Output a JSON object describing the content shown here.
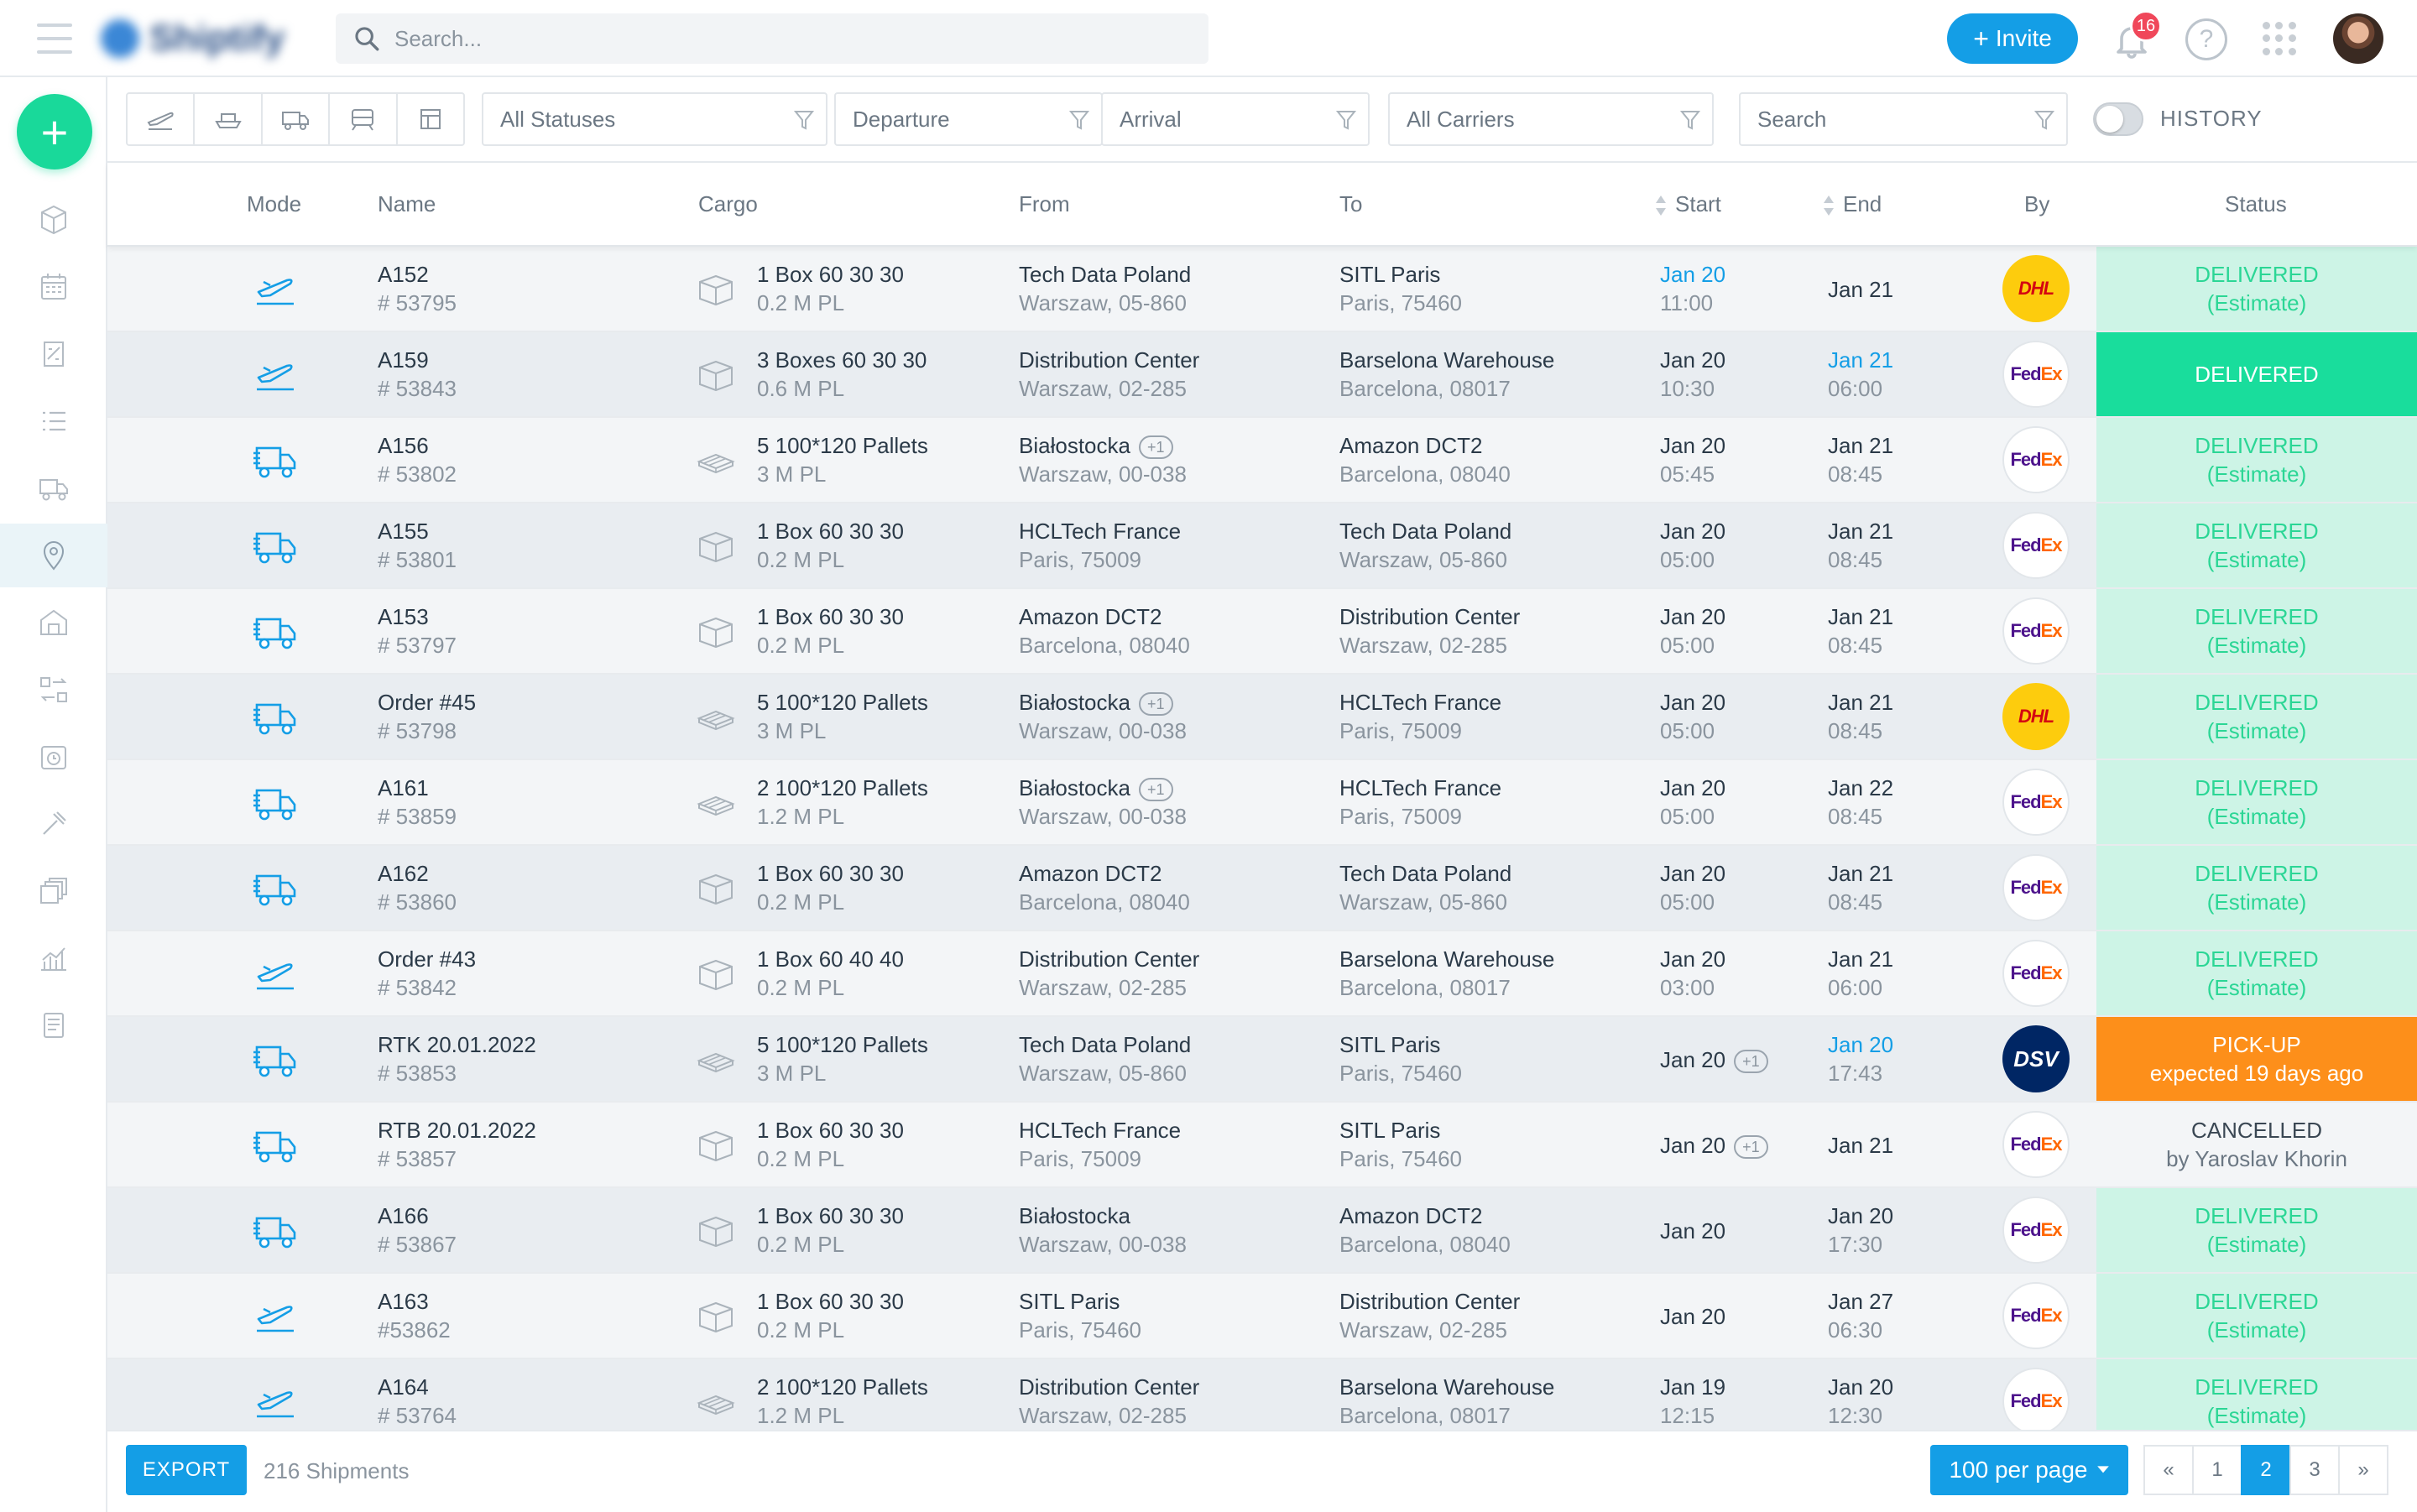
{
  "topbar": {
    "logo_text": "Shiptify",
    "search_placeholder": "Search...",
    "invite_label": "Invite",
    "notifications_count": "16",
    "help_label": "?"
  },
  "filters": {
    "status": "All Statuses",
    "departure": "Departure",
    "arrival": "Arrival",
    "carriers": "All Carriers",
    "search": "Search",
    "history_label": "HISTORY",
    "history_enabled": false
  },
  "table": {
    "columns": {
      "mode": "Mode",
      "name": "Name",
      "cargo": "Cargo",
      "from": "From",
      "to": "To",
      "start": "Start",
      "end": "End",
      "by": "By",
      "status": "Status"
    },
    "rows": [
      {
        "mode": "air",
        "name": "A152",
        "id": "# 53795",
        "cargo_type": "box",
        "cargo": "1 Box 60 30 30",
        "cargo_size": "0.2 M PL",
        "from_name": "Tech Data Poland",
        "from_extra": "",
        "from_city": "Warszaw, 05-860",
        "to_name": "SITL Paris",
        "to_city": "Paris, 75460",
        "start_date": "Jan 20",
        "start_time": "11:00",
        "start_extra": "",
        "start_highlight": true,
        "end_date": "Jan 21",
        "end_time": "",
        "end_highlight": false,
        "carrier": "dhl",
        "carrier_label": "DHL",
        "status_type": "est",
        "status": "DELIVERED",
        "status_sub": "(Estimate)"
      },
      {
        "mode": "air",
        "name": "A159",
        "id": "# 53843",
        "cargo_type": "box",
        "cargo": "3 Boxes 60 30 30",
        "cargo_size": "0.6 M PL",
        "from_name": "Distribution Center",
        "from_extra": "",
        "from_city": "Warszaw, 02-285",
        "to_name": "Barselona Warehouse",
        "to_city": "Barcelona, 08017",
        "start_date": "Jan 20",
        "start_time": "10:30",
        "start_extra": "",
        "start_highlight": false,
        "end_date": "Jan 21",
        "end_time": "06:00",
        "end_highlight": true,
        "carrier": "fedex",
        "carrier_label": "FedEx",
        "status_type": "del",
        "status": "DELIVERED",
        "status_sub": ""
      },
      {
        "mode": "truck",
        "name": "A156",
        "id": "# 53802",
        "cargo_type": "pallet",
        "cargo": "5 100*120 Pallets",
        "cargo_size": "3 M PL",
        "from_name": "Białostocka",
        "from_extra": "+1",
        "from_city": "Warszaw, 00-038",
        "to_name": "Amazon DCT2",
        "to_city": "Barcelona, 08040",
        "start_date": "Jan 20",
        "start_time": "05:45",
        "start_extra": "",
        "start_highlight": false,
        "end_date": "Jan 21",
        "end_time": "08:45",
        "end_highlight": false,
        "carrier": "fedex",
        "carrier_label": "FedEx",
        "status_type": "est",
        "status": "DELIVERED",
        "status_sub": "(Estimate)"
      },
      {
        "mode": "truck",
        "name": "A155",
        "id": "# 53801",
        "cargo_type": "box",
        "cargo": "1 Box 60 30 30",
        "cargo_size": "0.2 M PL",
        "from_name": "HCLTech France",
        "from_extra": "",
        "from_city": "Paris, 75009",
        "to_name": "Tech Data Poland",
        "to_city": "Warszaw, 05-860",
        "start_date": "Jan 20",
        "start_time": "05:00",
        "start_extra": "",
        "start_highlight": false,
        "end_date": "Jan 21",
        "end_time": "08:45",
        "end_highlight": false,
        "carrier": "fedex",
        "carrier_label": "FedEx",
        "status_type": "est",
        "status": "DELIVERED",
        "status_sub": "(Estimate)"
      },
      {
        "mode": "truck",
        "name": "A153",
        "id": "# 53797",
        "cargo_type": "box",
        "cargo": "1 Box 60 30 30",
        "cargo_size": "0.2 M PL",
        "from_name": "Amazon DCT2",
        "from_extra": "",
        "from_city": "Barcelona, 08040",
        "to_name": "Distribution Center",
        "to_city": "Warszaw, 02-285",
        "start_date": "Jan 20",
        "start_time": "05:00",
        "start_extra": "",
        "start_highlight": false,
        "end_date": "Jan 21",
        "end_time": "08:45",
        "end_highlight": false,
        "carrier": "fedex",
        "carrier_label": "FedEx",
        "status_type": "est",
        "status": "DELIVERED",
        "status_sub": "(Estimate)"
      },
      {
        "mode": "truck",
        "name": "Order #45",
        "id": "# 53798",
        "cargo_type": "pallet",
        "cargo": "5 100*120 Pallets",
        "cargo_size": "3 M PL",
        "from_name": "Białostocka",
        "from_extra": "+1",
        "from_city": "Warszaw, 00-038",
        "to_name": "HCLTech France",
        "to_city": "Paris, 75009",
        "start_date": "Jan 20",
        "start_time": "05:00",
        "start_extra": "",
        "start_highlight": false,
        "end_date": "Jan 21",
        "end_time": "08:45",
        "end_highlight": false,
        "carrier": "dhl",
        "carrier_label": "DHL",
        "status_type": "est",
        "status": "DELIVERED",
        "status_sub": "(Estimate)"
      },
      {
        "mode": "truck",
        "name": "A161",
        "id": "# 53859",
        "cargo_type": "pallet",
        "cargo": "2 100*120 Pallets",
        "cargo_size": "1.2 M PL",
        "from_name": "Białostocka",
        "from_extra": "+1",
        "from_city": "Warszaw, 00-038",
        "to_name": "HCLTech France",
        "to_city": "Paris, 75009",
        "start_date": "Jan 20",
        "start_time": "05:00",
        "start_extra": "",
        "start_highlight": false,
        "end_date": "Jan 22",
        "end_time": "08:45",
        "end_highlight": false,
        "carrier": "fedex",
        "carrier_label": "FedEx",
        "status_type": "est",
        "status": "DELIVERED",
        "status_sub": "(Estimate)"
      },
      {
        "mode": "truck",
        "name": "A162",
        "id": "# 53860",
        "cargo_type": "box",
        "cargo": "1 Box 60 30 30",
        "cargo_size": "0.2 M PL",
        "from_name": "Amazon DCT2",
        "from_extra": "",
        "from_city": "Barcelona, 08040",
        "to_name": "Tech Data Poland",
        "to_city": "Warszaw, 05-860",
        "start_date": "Jan 20",
        "start_time": "05:00",
        "start_extra": "",
        "start_highlight": false,
        "end_date": "Jan 21",
        "end_time": "08:45",
        "end_highlight": false,
        "carrier": "fedex",
        "carrier_label": "FedEx",
        "status_type": "est",
        "status": "DELIVERED",
        "status_sub": "(Estimate)"
      },
      {
        "mode": "air",
        "name": "Order #43",
        "id": "# 53842",
        "cargo_type": "box",
        "cargo": "1 Box 60 40 40",
        "cargo_size": "0.2 M PL",
        "from_name": "Distribution Center",
        "from_extra": "",
        "from_city": "Warszaw, 02-285",
        "to_name": "Barselona Warehouse",
        "to_city": "Barcelona, 08017",
        "start_date": "Jan 20",
        "start_time": "03:00",
        "start_extra": "",
        "start_highlight": false,
        "end_date": "Jan 21",
        "end_time": "06:00",
        "end_highlight": false,
        "carrier": "fedex",
        "carrier_label": "FedEx",
        "status_type": "est",
        "status": "DELIVERED",
        "status_sub": "(Estimate)"
      },
      {
        "mode": "truck",
        "name": "RTK 20.01.2022",
        "id": "# 53853",
        "cargo_type": "pallet",
        "cargo": "5 100*120 Pallets",
        "cargo_size": "3 M PL",
        "from_name": "Tech Data Poland",
        "from_extra": "",
        "from_city": "Warszaw, 05-860",
        "to_name": "SITL Paris",
        "to_city": "Paris, 75460",
        "start_date": "Jan 20",
        "start_time": "",
        "start_extra": "+1",
        "start_highlight": false,
        "end_date": "Jan 20",
        "end_time": "17:43",
        "end_highlight": true,
        "carrier": "dsv",
        "carrier_label": "DSV",
        "status_type": "pick",
        "status": "PICK-UP",
        "status_sub": "expected 19 days ago"
      },
      {
        "mode": "truck",
        "name": "RTB 20.01.2022",
        "id": "# 53857",
        "cargo_type": "box",
        "cargo": "1 Box 60 30 30",
        "cargo_size": "0.2 M PL",
        "from_name": "HCLTech France",
        "from_extra": "",
        "from_city": "Paris, 75009",
        "to_name": "SITL Paris",
        "to_city": "Paris, 75460",
        "start_date": "Jan 20",
        "start_time": "",
        "start_extra": "+1",
        "start_highlight": false,
        "end_date": "Jan 21",
        "end_time": "",
        "end_highlight": false,
        "carrier": "fedex",
        "carrier_label": "FedEx",
        "status_type": "cancel",
        "status": "CANCELLED",
        "status_sub": "by Yaroslav Khorin"
      },
      {
        "mode": "truck",
        "name": "A166",
        "id": "# 53867",
        "cargo_type": "box",
        "cargo": "1 Box 60 30 30",
        "cargo_size": "0.2 M PL",
        "from_name": "Białostocka",
        "from_extra": "",
        "from_city": "Warszaw, 00-038",
        "to_name": "Amazon DCT2",
        "to_city": "Barcelona, 08040",
        "start_date": "Jan 20",
        "start_time": "",
        "start_extra": "",
        "start_highlight": false,
        "end_date": "Jan 20",
        "end_time": "17:30",
        "end_highlight": false,
        "carrier": "fedex",
        "carrier_label": "FedEx",
        "status_type": "est",
        "status": "DELIVERED",
        "status_sub": "(Estimate)"
      },
      {
        "mode": "air",
        "name": "A163",
        "id": "#53862",
        "cargo_type": "box",
        "cargo": "1 Box 60 30 30",
        "cargo_size": "0.2 M PL",
        "from_name": "SITL Paris",
        "from_extra": "",
        "from_city": "Paris, 75460",
        "to_name": "Distribution Center",
        "to_city": "Warszaw, 02-285",
        "start_date": "Jan 20",
        "start_time": "",
        "start_extra": "",
        "start_highlight": false,
        "end_date": "Jan 27",
        "end_time": "06:30",
        "end_highlight": false,
        "carrier": "fedex",
        "carrier_label": "FedEx",
        "status_type": "est",
        "status": "DELIVERED",
        "status_sub": "(Estimate)"
      },
      {
        "mode": "air",
        "name": "A164",
        "id": "# 53764",
        "cargo_type": "pallet",
        "cargo": "2 100*120 Pallets",
        "cargo_size": "1.2 M PL",
        "from_name": "Distribution Center",
        "from_extra": "",
        "from_city": "Warszaw, 02-285",
        "to_name": "Barselona Warehouse",
        "to_city": "Barcelona, 08017",
        "start_date": "Jan 19",
        "start_time": "12:15",
        "start_extra": "",
        "start_highlight": false,
        "end_date": "Jan 20",
        "end_time": "12:30",
        "end_highlight": false,
        "carrier": "fedex",
        "carrier_label": "FedEx",
        "status_type": "est",
        "status": "DELIVERED",
        "status_sub": "(Estimate)"
      }
    ]
  },
  "footer": {
    "export_label": "EXPORT",
    "shipments_count": "216 Shipments",
    "per_page": "100 per page",
    "pages": [
      "«",
      "1",
      "2",
      "3",
      "»"
    ],
    "current_page": "2"
  },
  "colors": {
    "accent": "#149ee6",
    "add_button": "#19d99a",
    "delivered": "#19dd9c",
    "estimate_bg": "#cdf4e6",
    "pickup": "#fd8f1a"
  },
  "icons": {
    "sidebar": [
      "box-icon",
      "calendar-icon",
      "invoice-icon",
      "list-icon",
      "truck-icon",
      "location-pin-icon",
      "warehouse-icon",
      "transfer-icon",
      "clock-badge-icon",
      "hammer-icon",
      "stack-icon",
      "chart-icon",
      "document-icon"
    ]
  }
}
